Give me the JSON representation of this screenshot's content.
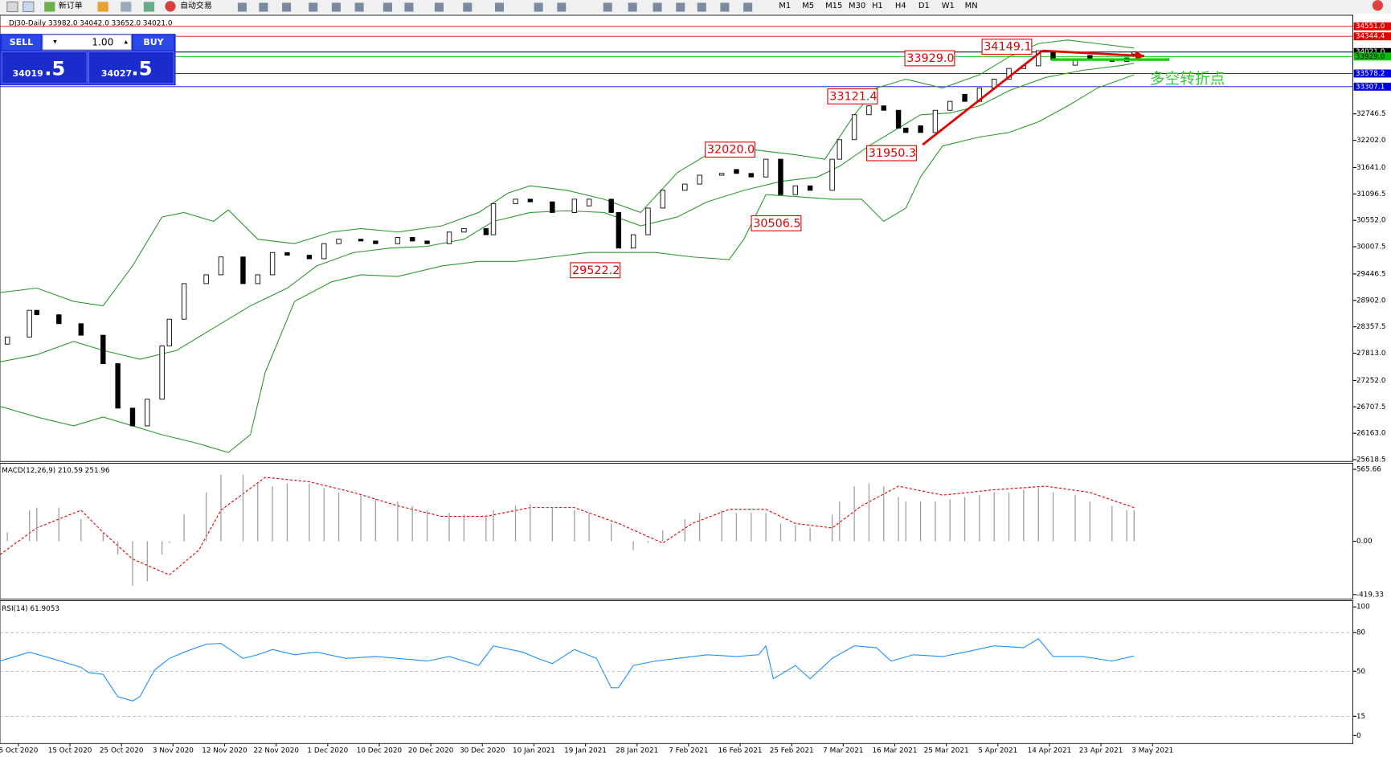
{
  "toolbar": {
    "buttons": [
      "新订单",
      "自动交易"
    ],
    "timeframes": [
      "M1",
      "M5",
      "M15",
      "M30",
      "H1",
      "H4",
      "D1",
      "W1",
      "MN"
    ]
  },
  "trade_panel": {
    "sell": "SELL",
    "buy": "BUY",
    "volume": "1.00",
    "sell_price": "34019",
    "sell_fraction": ".5",
    "buy_price": "34027",
    "buy_fraction": ".5"
  },
  "annotations": [
    "34149.1",
    "33929.0",
    "33121.4",
    "32020.0",
    "31950.3",
    "30506.5",
    "29522.2"
  ],
  "note": "多空转折点",
  "chart_data": [
    {
      "type": "candlestick",
      "title": "DJ30-Daily 33982.0 34042.0 33652.0 34021.0",
      "x": [
        1,
        4,
        5,
        8,
        11,
        14,
        16,
        18,
        20,
        22,
        23,
        25,
        28,
        30,
        33,
        35,
        37,
        39,
        42,
        44,
        46,
        49,
        51,
        54,
        56,
        58,
        61,
        63,
        66,
        67,
        70,
        72,
        75,
        78,
        80,
        83,
        84,
        86,
        88,
        90,
        93,
        95,
        98,
        100,
        102,
        104,
        106,
        108,
        110,
        113,
        114,
        116,
        118,
        120,
        122,
        123,
        125,
        127,
        129,
        131,
        133,
        135,
        137,
        139,
        141,
        143,
        146,
        148,
        151,
        153,
        154
      ],
      "open": [
        28000,
        28147,
        28697,
        28606,
        28422,
        28184,
        27598,
        26681,
        26315,
        26865,
        27964,
        28514,
        29247,
        29430,
        29797,
        29247,
        29430,
        29888,
        29833,
        29760,
        30071,
        30163,
        30126,
        30071,
        30200,
        30126,
        30071,
        30310,
        30383,
        30255,
        30896,
        30988,
        30933,
        30713,
        30850,
        30988,
        30713,
        29980,
        30255,
        30805,
        31171,
        31299,
        31482,
        31600,
        31519,
        31446,
        31812,
        31080,
        31263,
        31171,
        31812,
        32215,
        32729,
        32912,
        32820,
        32454,
        32500,
        32362,
        32820,
        33150,
        33004,
        33278,
        33462,
        33682,
        33737,
        34048,
        33750,
        33950,
        33865,
        33828,
        33982
      ],
      "close": [
        28147,
        28697,
        28606,
        28422,
        28184,
        27598,
        26681,
        26315,
        26865,
        27964,
        28514,
        29247,
        29430,
        29797,
        29247,
        29430,
        29888,
        29833,
        29760,
        30071,
        30163,
        30126,
        30071,
        30200,
        30126,
        30071,
        30310,
        30383,
        30255,
        30896,
        30988,
        30933,
        30713,
        30988,
        30988,
        30713,
        29980,
        30255,
        30805,
        31171,
        31299,
        31482,
        31519,
        31519,
        31446,
        31812,
        31080,
        31263,
        31171,
        31812,
        32215,
        32729,
        32912,
        32820,
        32454,
        32362,
        32362,
        32820,
        33004,
        33004,
        33278,
        33462,
        33682,
        33737,
        34048,
        33865,
        33865,
        33865,
        33828,
        33901,
        34021
      ],
      "overlays": [
        {
          "color": "#2e9b2e",
          "x": [
            0,
            5,
            10,
            14,
            18,
            22,
            25,
            29,
            31,
            35,
            40,
            45,
            49,
            54,
            60,
            65,
            69,
            72,
            77,
            82,
            87,
            92,
            96,
            101,
            105,
            108,
            112,
            116,
            119,
            123,
            128,
            133,
            137,
            141,
            145,
            149,
            154
          ],
          "values": [
            29064,
            29155,
            28880,
            28789,
            29613,
            30621,
            30713,
            30530,
            30768,
            30163,
            30071,
            30310,
            30383,
            30310,
            30438,
            30713,
            31116,
            31263,
            31171,
            30988,
            30713,
            31537,
            31904,
            32032,
            31959,
            31904,
            31812,
            32729,
            33278,
            33462,
            33278,
            33553,
            33920,
            34195,
            34268,
            34195,
            34103
          ]
        },
        {
          "color": "#2e9b2e",
          "x": [
            0,
            5,
            10,
            14,
            19,
            24,
            29,
            34,
            39,
            43,
            48,
            53,
            58,
            63,
            67,
            72,
            77,
            82,
            87,
            92,
            96,
            101,
            106,
            111,
            114,
            118,
            122,
            125,
            129,
            133,
            137,
            142,
            147,
            152,
            154
          ],
          "values": [
            27634,
            27781,
            28056,
            27872,
            27689,
            27872,
            28331,
            28789,
            29155,
            29613,
            29888,
            29980,
            30016,
            30163,
            30530,
            30713,
            30750,
            30713,
            30438,
            30621,
            30933,
            31171,
            31354,
            31446,
            31666,
            32087,
            32454,
            32729,
            32765,
            32912,
            33224,
            33498,
            33645,
            33737,
            33791
          ]
        },
        {
          "color": "#2e9b2e",
          "x": [
            0,
            5,
            10,
            14,
            18,
            22,
            27,
            31,
            34,
            36,
            40,
            45,
            49,
            54,
            60,
            65,
            70,
            75,
            80,
            84,
            89,
            94,
            99,
            101,
            104,
            108,
            113,
            117,
            120,
            123,
            125,
            128,
            133,
            137,
            141,
            145,
            149,
            154
          ],
          "values": [
            26718,
            26498,
            26315,
            26498,
            26315,
            26132,
            25948,
            25765,
            26132,
            27414,
            28880,
            29284,
            29430,
            29394,
            29613,
            29705,
            29705,
            29797,
            29888,
            29888,
            29888,
            29797,
            29742,
            30163,
            31080,
            31043,
            30988,
            30988,
            30530,
            30805,
            31446,
            32087,
            32270,
            32362,
            32582,
            32912,
            33278,
            33553
          ]
        }
      ],
      "levels": [
        {
          "value": 34551,
          "label": "34551.0",
          "color": "#e00000"
        },
        {
          "value": 34344.4,
          "label": "34344.4",
          "color": "#e00000"
        },
        {
          "value": 34021,
          "label": "34021.0",
          "color": "#000000"
        },
        {
          "value": 33929,
          "label": "33929.0",
          "color": "#00c000"
        },
        {
          "value": 33578.2,
          "label": "33578.2",
          "color": "#0000e0"
        },
        {
          "value": 33307.1,
          "label": "33307.1",
          "color": "#0000e0"
        }
      ],
      "xlim": [
        0,
        183.7
      ],
      "ylim": [
        25582,
        34780
      ],
      "xticks": [
        {
          "value": 2.5,
          "label": "5 Oct 2020"
        },
        {
          "value": 9.5,
          "label": "15 Oct 2020"
        },
        {
          "value": 16.5,
          "label": "25 Oct 2020"
        },
        {
          "value": 23.5,
          "label": "3 Nov 2020"
        },
        {
          "value": 30.5,
          "label": "12 Nov 2020"
        },
        {
          "value": 37.5,
          "label": "22 Nov 2020"
        },
        {
          "value": 44.5,
          "label": "1 Dec 2020"
        },
        {
          "value": 51.5,
          "label": "10 Dec 2020"
        },
        {
          "value": 58.5,
          "label": "20 Dec 2020"
        },
        {
          "value": 65.5,
          "label": "30 Dec 2020"
        },
        {
          "value": 72.5,
          "label": "10 Jan 2021"
        },
        {
          "value": 79.5,
          "label": "19 Jan 2021"
        },
        {
          "value": 86.5,
          "label": "28 Jan 2021"
        },
        {
          "value": 93.5,
          "label": "7 Feb 2021"
        },
        {
          "value": 100.5,
          "label": "16 Feb 2021"
        },
        {
          "value": 107.5,
          "label": "25 Feb 2021"
        },
        {
          "value": 114.5,
          "label": "7 Mar 2021"
        },
        {
          "value": 121.5,
          "label": "16 Mar 2021"
        },
        {
          "value": 128.5,
          "label": "25 Mar 2021"
        },
        {
          "value": 135.5,
          "label": "5 Apr 2021"
        },
        {
          "value": 142.5,
          "label": "14 Apr 2021"
        },
        {
          "value": 149.5,
          "label": "23 Apr 2021"
        },
        {
          "value": 156.5,
          "label": "3 May 2021"
        }
      ],
      "yticks": [
        32746.5,
        {
          "value": 32202,
          "label": "32202.0"
        },
        {
          "value": 31641,
          "label": "31641.0"
        },
        31096.5,
        {
          "value": 30552,
          "label": "30552.0"
        },
        30007.5,
        29446.5,
        {
          "value": 28902,
          "label": "28902.0"
        },
        28357.5,
        {
          "value": 27813,
          "label": "27813.0"
        },
        {
          "value": 27252,
          "label": "27252.0"
        },
        26707.5,
        {
          "value": 26163,
          "label": "26163.0"
        },
        25618.5
      ]
    },
    {
      "type": "bar",
      "title": "MACD(12,26,9) 210.59 251.96",
      "color": "#a0a0a0",
      "x": [
        1,
        4,
        5,
        8,
        11,
        14,
        16,
        18,
        20,
        22,
        23,
        25,
        28,
        30,
        33,
        35,
        37,
        39,
        42,
        44,
        46,
        49,
        51,
        54,
        56,
        58,
        61,
        63,
        66,
        67,
        70,
        72,
        75,
        78,
        80,
        83,
        84,
        86,
        88,
        90,
        93,
        95,
        98,
        100,
        102,
        104,
        106,
        108,
        110,
        113,
        114,
        116,
        118,
        120,
        122,
        123,
        125,
        127,
        129,
        131,
        133,
        135,
        137,
        139,
        141,
        143,
        146,
        148,
        151,
        153,
        154
      ],
      "values": [
        70,
        244,
        265,
        265,
        175,
        70,
        -105,
        -350,
        -315,
        -105,
        -14,
        210,
        384,
        524,
        524,
        454,
        433,
        454,
        454,
        419,
        384,
        363,
        335,
        314,
        279,
        244,
        223,
        210,
        210,
        244,
        279,
        293,
        265,
        244,
        223,
        140,
        0,
        -70,
        -14,
        84,
        175,
        223,
        244,
        223,
        223,
        223,
        140,
        126,
        105,
        210,
        314,
        433,
        454,
        433,
        349,
        314,
        314,
        314,
        328,
        349,
        363,
        384,
        384,
        405,
        419,
        384,
        363,
        314,
        279,
        244,
        244
      ],
      "overlays": [
        {
          "color": "#e00000",
          "dashed": true,
          "x": [
            0,
            5,
            11,
            14,
            18,
            23,
            27,
            30,
            36,
            42,
            48,
            54,
            60,
            66,
            72,
            78,
            84,
            90,
            94,
            99,
            104,
            108,
            113,
            117,
            122,
            128,
            135,
            142,
            148,
            154
          ],
          "values": [
            -105,
            105,
            244,
            70,
            -140,
            -265,
            -70,
            244,
            503,
            468,
            384,
            279,
            196,
            196,
            265,
            265,
            140,
            -14,
            140,
            251,
            251,
            140,
            105,
            279,
            433,
            363,
            405,
            433,
            384,
            265
          ]
        }
      ],
      "xlim": [
        0,
        183.7
      ],
      "ylim": [
        -454,
        614
      ],
      "yticks": [
        565.66,
        {
          "value": 0,
          "label": "0.00"
        },
        -419.33
      ]
    },
    {
      "type": "line",
      "title": "RSI(14) 61.9053",
      "color": "#1e90ff",
      "x": [
        0,
        4,
        7,
        11,
        12,
        14,
        16,
        18,
        19,
        21,
        23,
        25,
        28,
        30,
        33,
        35,
        37,
        40,
        43,
        47,
        51,
        54,
        58,
        61,
        65,
        67,
        71,
        73,
        75,
        78,
        81,
        83,
        84,
        86,
        89,
        92,
        96,
        100,
        103,
        104,
        105,
        108,
        110,
        113,
        116,
        119,
        121,
        124,
        128,
        131,
        135,
        139,
        141,
        143,
        147,
        151,
        154
      ],
      "values": [
        57.9,
        64.8,
        60,
        53.1,
        49,
        47.6,
        30.3,
        26.9,
        30.3,
        51,
        60,
        64.8,
        71,
        71.7,
        60,
        62.8,
        66.9,
        62.8,
        64.8,
        60,
        61.4,
        60,
        57.9,
        61.4,
        54.5,
        69.7,
        64.8,
        60,
        55.9,
        66.9,
        60,
        37.2,
        37.2,
        54.5,
        57.9,
        60,
        62.8,
        61.4,
        62.8,
        69.7,
        44.1,
        54.5,
        44.1,
        60,
        69.7,
        68.3,
        57.9,
        62.8,
        61.4,
        64.8,
        69.7,
        68.3,
        75.2,
        61.4,
        61.4,
        57.9,
        61.9
      ],
      "xlim": [
        0,
        183.7
      ],
      "ylim": [
        -6.2,
        104.8
      ],
      "yticks": [
        100,
        80,
        50,
        15,
        0
      ]
    }
  ]
}
